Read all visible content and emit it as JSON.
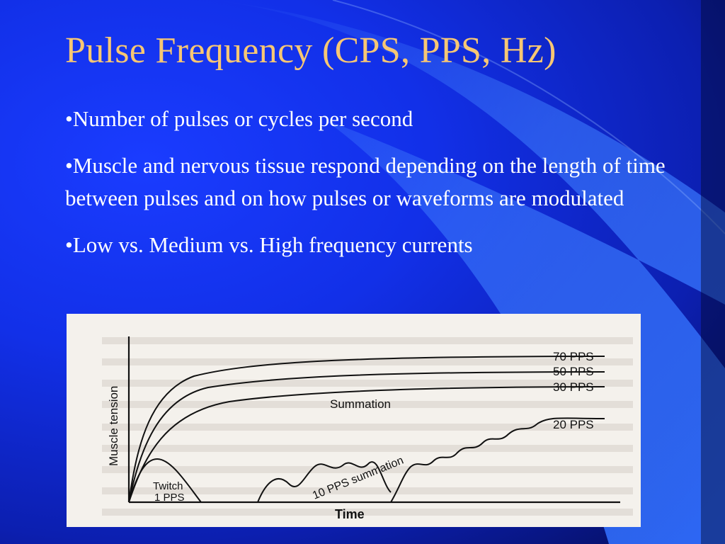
{
  "slide": {
    "title": "Pulse Frequency (CPS, PPS, Hz)",
    "bullets": [
      "•Number of pulses or cycles per second",
      "•Muscle and nervous tissue respond depending on the length of time between pulses and on how pulses or waveforms are modulated",
      "•Low vs. Medium vs. High frequency currents"
    ]
  },
  "figure": {
    "ylabel": "Muscle tension",
    "xlabel": "Time",
    "labels": {
      "pps70": "70 PPS",
      "pps50": "50 PPS",
      "pps30": "30 PPS",
      "summation": "Summation",
      "pps20": "20 PPS",
      "twitch_line1": "Twitch",
      "twitch_line2": "1 PPS",
      "pps10": "10 PPS summation"
    }
  },
  "colors": {
    "title": "#f7c774",
    "text": "#ffffff",
    "background": "#1230e8",
    "swoosh": "#3a78ff"
  }
}
